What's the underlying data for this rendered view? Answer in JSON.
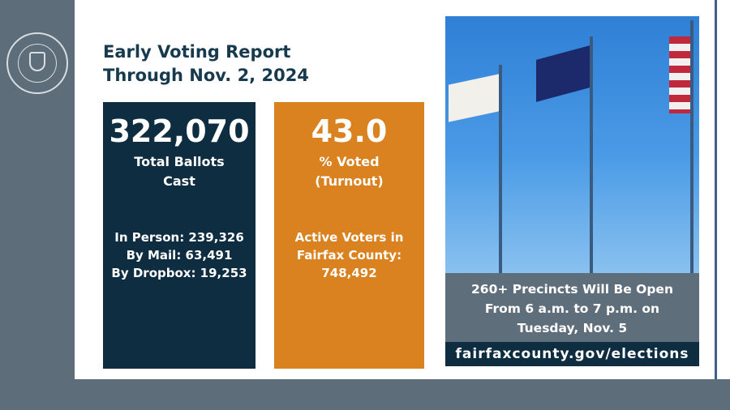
{
  "seal": {
    "text": "COUNTY OF FAIRFAX 1742 VIRGINIA"
  },
  "title": {
    "line1": "Early Voting Report",
    "line2": "Through Nov. 2, 2024"
  },
  "ballots": {
    "value": "322,070",
    "label1": "Total Ballots",
    "label2": "Cast",
    "in_person": "In Person: 239,326",
    "by_mail": "By Mail: 63,491",
    "by_dropbox": "By Dropbox: 19,253",
    "color": "#0f2d40"
  },
  "turnout": {
    "value": "43.0",
    "label1": "% Voted",
    "label2": "(Turnout)",
    "active1": "Active Voters in",
    "active2": "Fairfax County:",
    "active3": "748,492",
    "color": "#d9821f"
  },
  "photo": {
    "caption1": "260+ Precincts Will Be Open",
    "caption2": "From 6 a.m. to 7 p.m. on",
    "caption3": "Tuesday, Nov. 5",
    "url": "fairfaxcounty.gov/elections"
  }
}
